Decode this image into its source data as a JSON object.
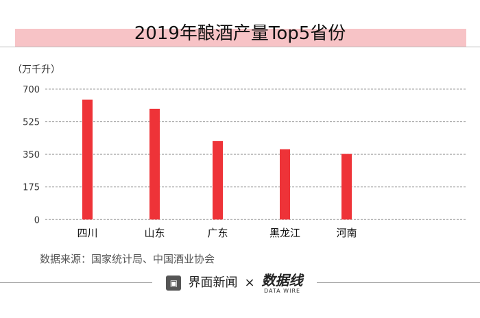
{
  "title": "2019年酿酒产量Top5省份",
  "source": "数据来源：国家统计局、中国酒业协会",
  "footer": {
    "brand": "界面新闻",
    "separator": "×",
    "partner": "数据线",
    "partner_sub": "DATA WIRE"
  },
  "watermark": "数据线",
  "chart_data": {
    "type": "bar",
    "title": "2019年酿酒产量Top5省份",
    "ylabel": "（万千升）",
    "categories": [
      "四川",
      "山东",
      "广东",
      "黑龙江",
      "河南"
    ],
    "values": [
      643,
      594,
      421,
      377,
      352
    ],
    "yticks": [
      0,
      175,
      350,
      525,
      700
    ],
    "ylim": [
      0,
      700
    ],
    "grid": true,
    "bar_color": "#ee3338"
  }
}
